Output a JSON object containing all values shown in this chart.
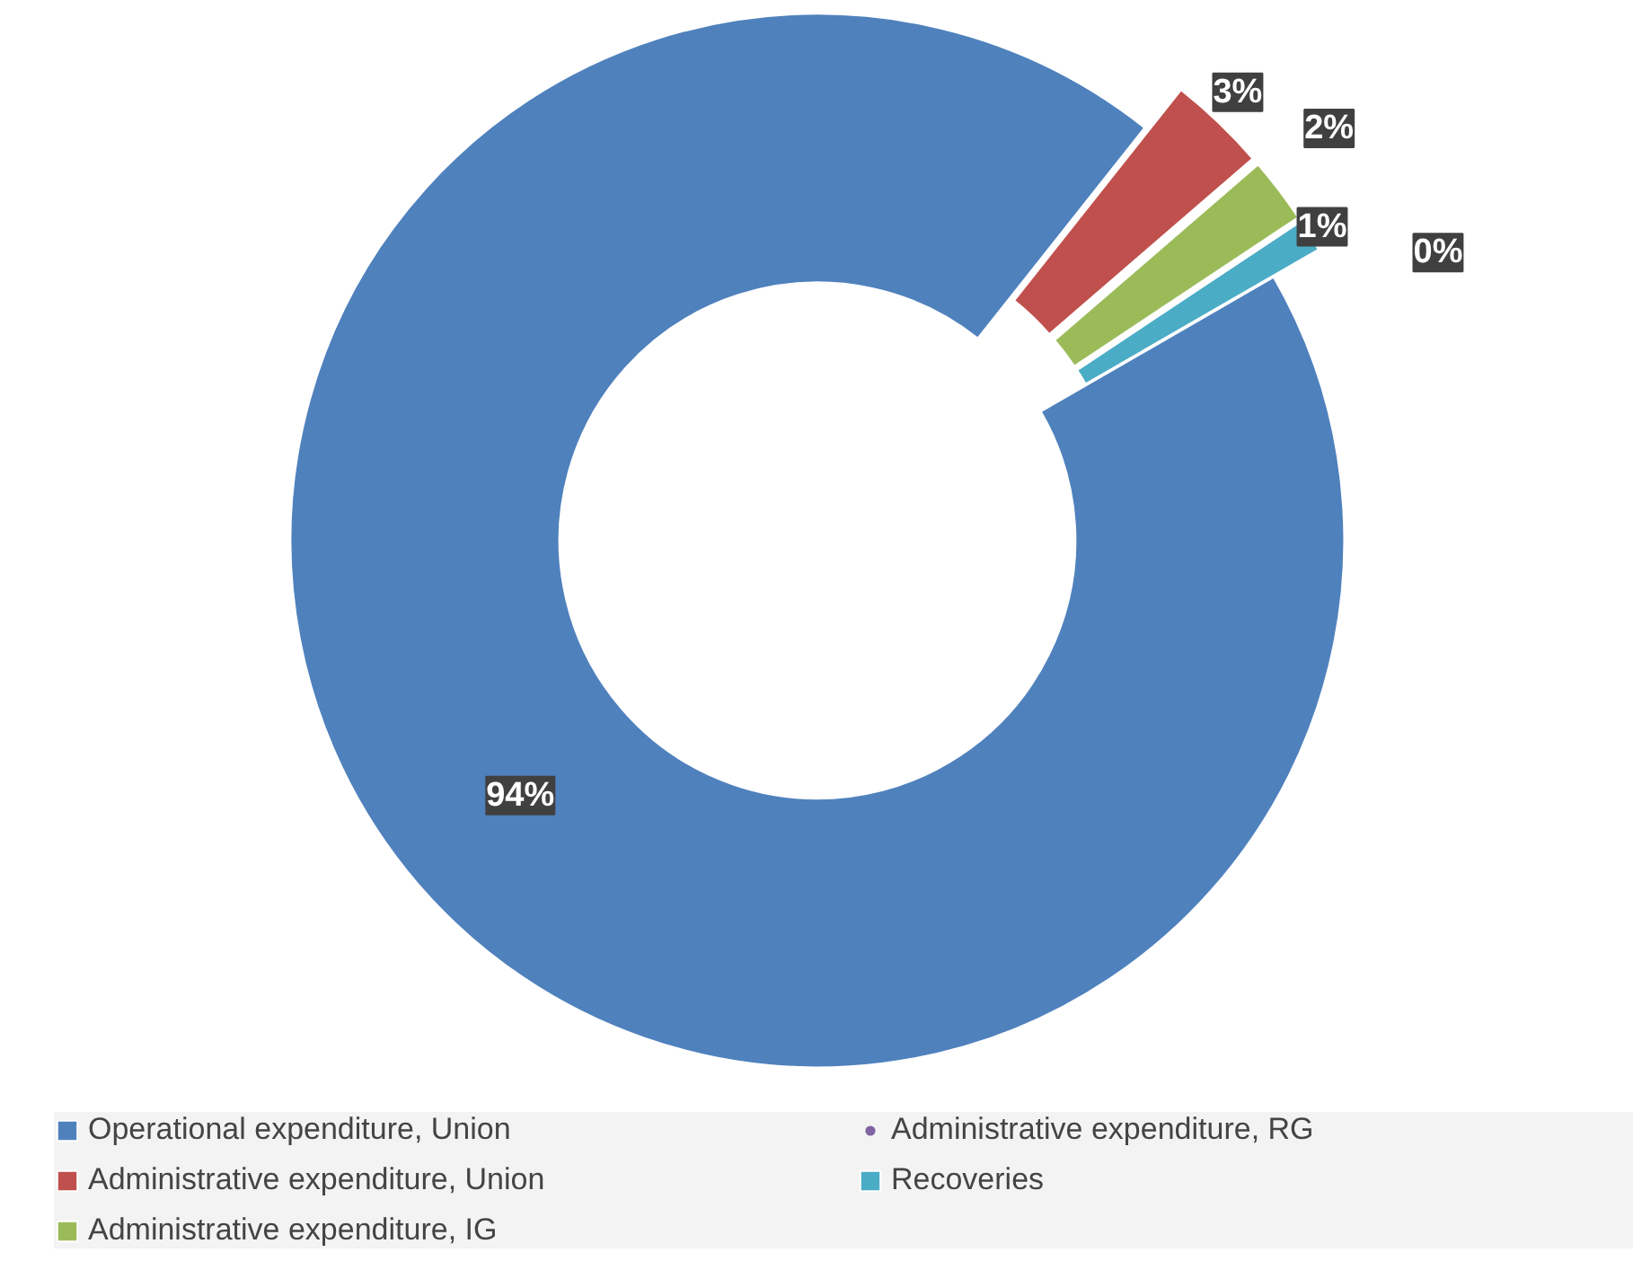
{
  "chart_data": {
    "type": "donut",
    "categories": [
      "Operational expenditure, Union",
      "Administrative expenditure, Union",
      "Administrative expenditure, IG",
      "Administrative expenditure, RG",
      "Recoveries"
    ],
    "values": [
      94,
      3,
      2,
      0,
      1
    ],
    "colors": [
      "#4f81bd",
      "#c0504d",
      "#9bbb59",
      "#8064a2",
      "#4bacc6"
    ],
    "value_labels": [
      "94%",
      "3%",
      "2%",
      "0%",
      "1%"
    ],
    "legend": "bottom"
  }
}
